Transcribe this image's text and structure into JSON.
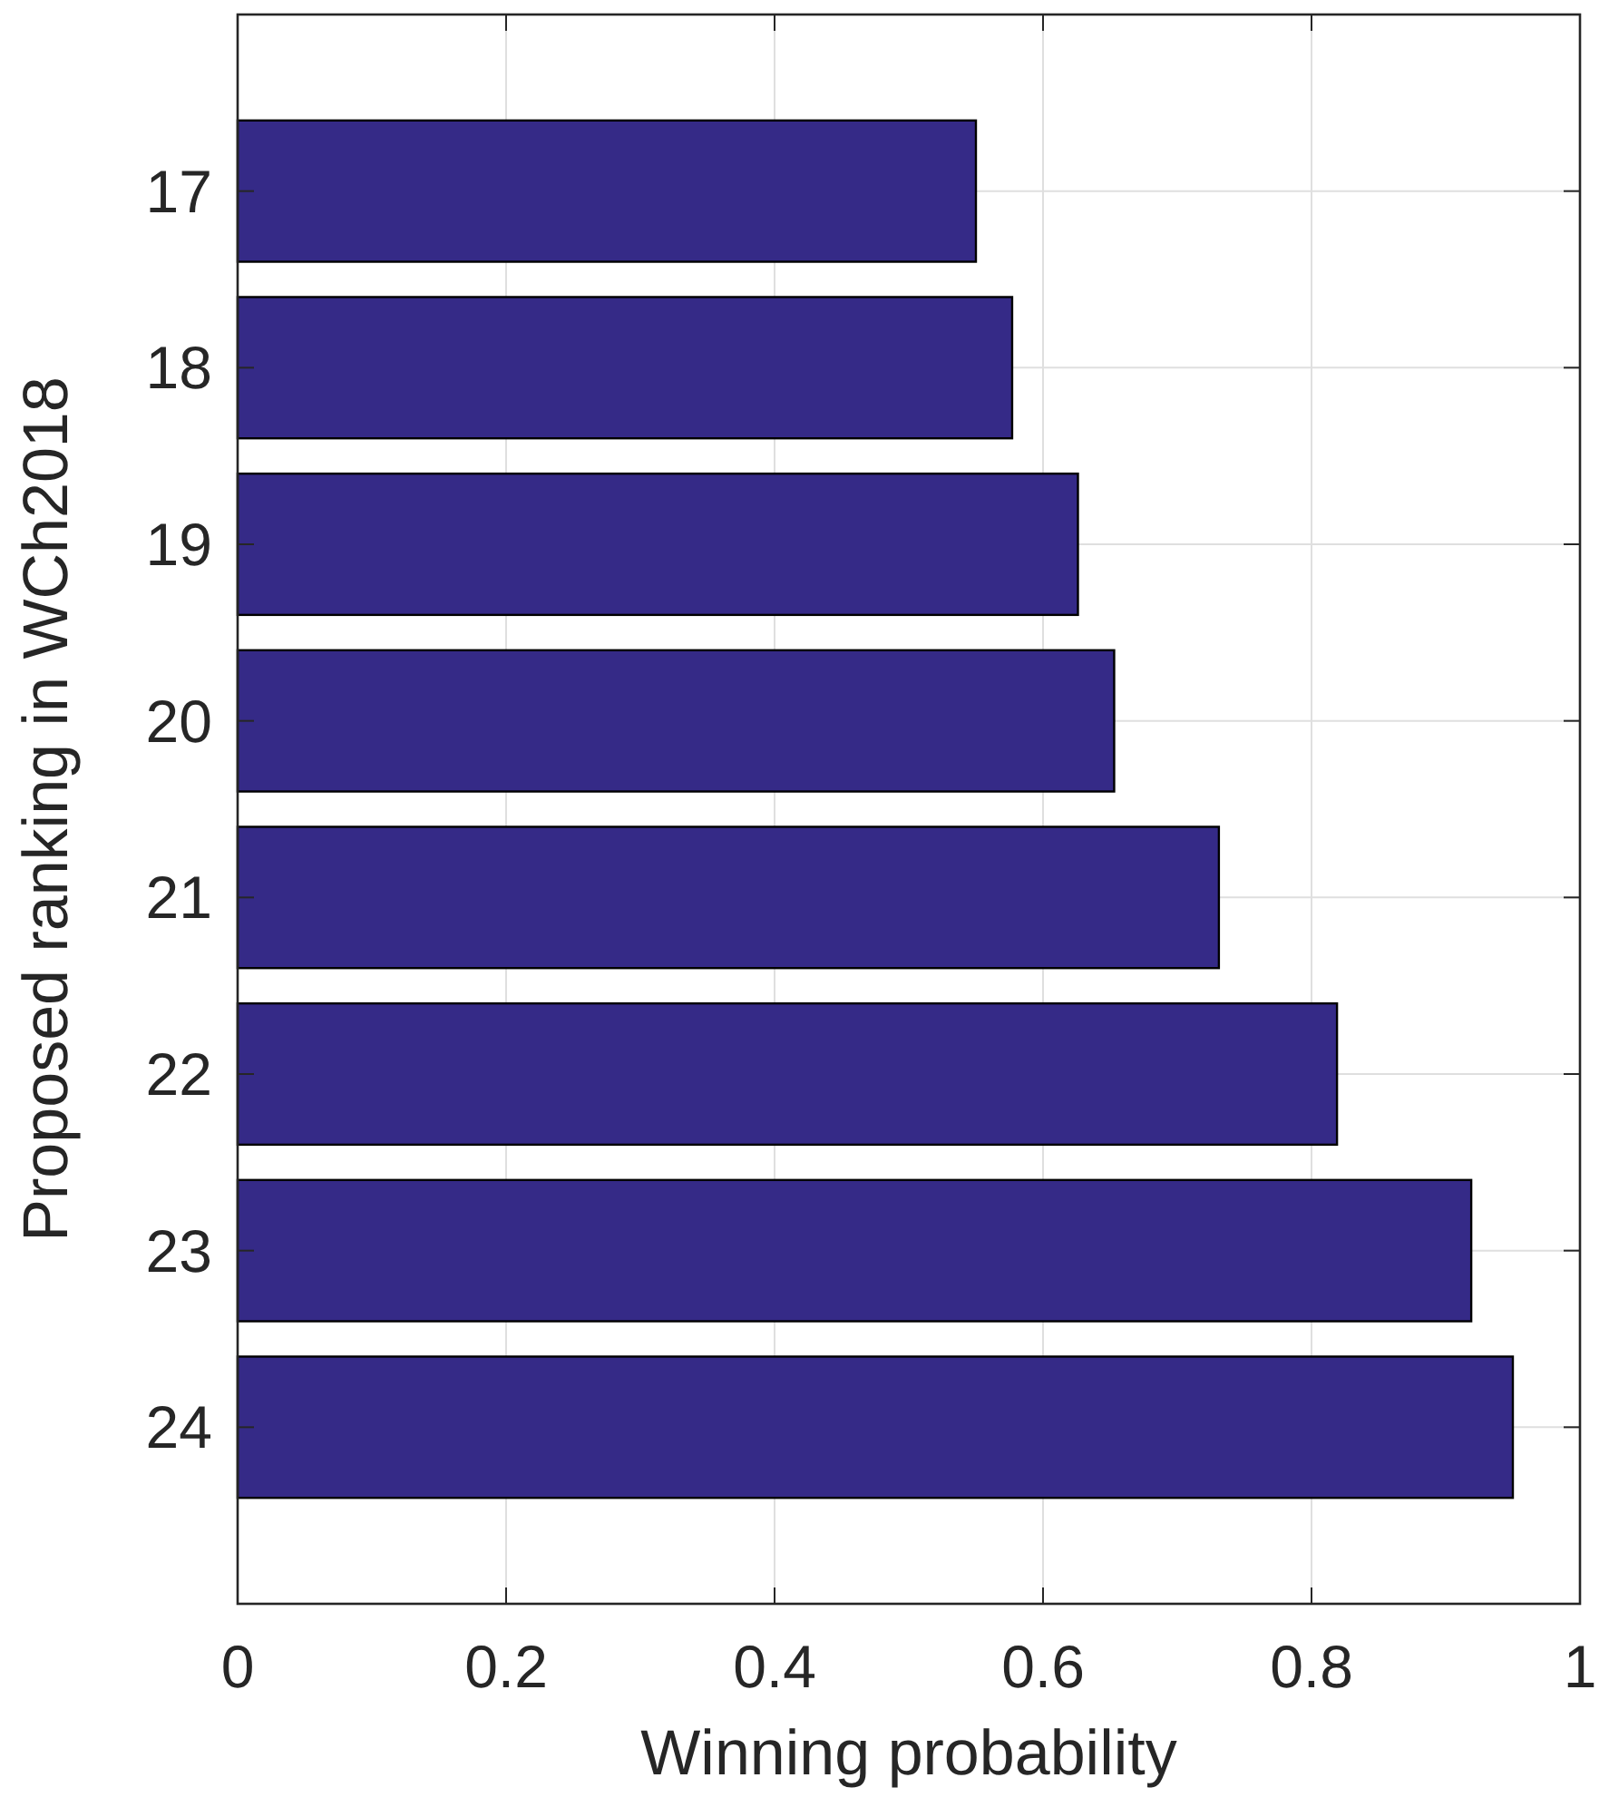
{
  "chart_data": {
    "type": "bar",
    "orientation": "horizontal",
    "xlabel": "Winning probability",
    "ylabel": "Proposed ranking in WCh2018",
    "categories": [
      "17",
      "18",
      "19",
      "20",
      "21",
      "22",
      "23",
      "24"
    ],
    "values": [
      0.55,
      0.577,
      0.626,
      0.653,
      0.731,
      0.819,
      0.919,
      0.95
    ],
    "color": "#352a87",
    "xlim": [
      0,
      1
    ],
    "xticks": [
      0,
      0.2,
      0.4,
      0.6,
      0.8,
      1
    ],
    "grid": true
  }
}
